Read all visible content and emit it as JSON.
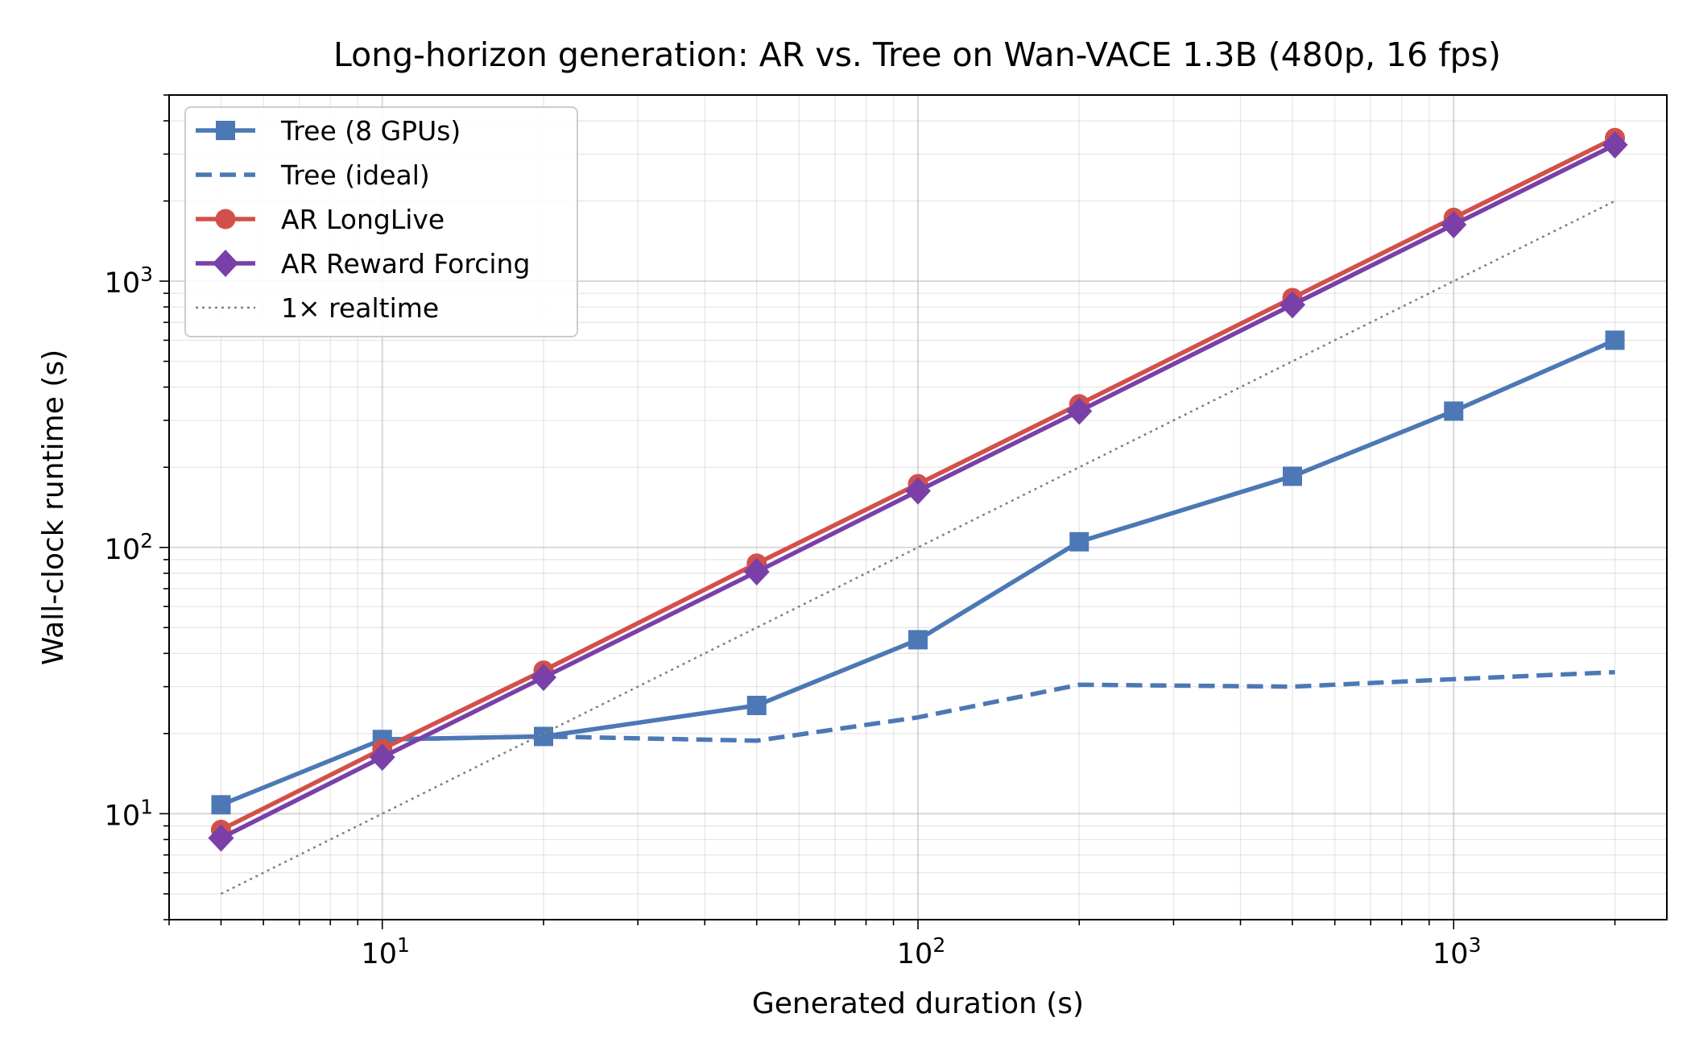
{
  "chart_data": {
    "type": "line",
    "title": "Long-horizon generation: AR vs. Tree on Wan-VACE 1.3B (480p, 16 fps)",
    "xlabel": "Generated duration (s)",
    "ylabel": "Wall-clock runtime (s)",
    "xscale": "log",
    "yscale": "log",
    "xlim": [
      4,
      2500
    ],
    "ylim": [
      4,
      5000
    ],
    "grid": true,
    "legend_position": "upper-left",
    "x_ticks": [
      {
        "value": 10,
        "base": "10",
        "exp": "1"
      },
      {
        "value": 100,
        "base": "10",
        "exp": "2"
      },
      {
        "value": 1000,
        "base": "10",
        "exp": "3"
      }
    ],
    "y_ticks": [
      {
        "value": 10,
        "base": "10",
        "exp": "1"
      },
      {
        "value": 100,
        "base": "10",
        "exp": "2"
      },
      {
        "value": 1000,
        "base": "10",
        "exp": "3"
      }
    ],
    "series": [
      {
        "name": "Tree (8 GPUs)",
        "color": "#4c78b5",
        "style": "solid",
        "marker": "square",
        "x": [
          5,
          10,
          20,
          50,
          100,
          200,
          500,
          1000,
          2000
        ],
        "y": [
          10.8,
          19,
          19.5,
          25.5,
          45,
          105,
          185,
          325,
          600
        ]
      },
      {
        "name": "Tree (ideal)",
        "color": "#4c78b5",
        "style": "dashed",
        "marker": "none",
        "x": [
          10,
          20,
          50,
          100,
          200,
          500,
          1000,
          2000
        ],
        "y": [
          19,
          19.5,
          18.8,
          23,
          30.5,
          30,
          32,
          34
        ]
      },
      {
        "name": "AR LongLive",
        "color": "#d1514a",
        "style": "solid",
        "marker": "circle",
        "x": [
          5,
          10,
          20,
          50,
          100,
          200,
          500,
          1000,
          2000
        ],
        "y": [
          8.7,
          17.5,
          34.5,
          87,
          173,
          345,
          865,
          1730,
          3450
        ]
      },
      {
        "name": "AR Reward Forcing",
        "color": "#7a40a8",
        "style": "solid",
        "marker": "diamond",
        "x": [
          5,
          10,
          20,
          50,
          100,
          200,
          500,
          1000,
          2000
        ],
        "y": [
          8.1,
          16.3,
          32.5,
          81,
          163,
          325,
          815,
          1630,
          3250
        ]
      },
      {
        "name": "1× realtime",
        "color": "#808080",
        "style": "dotted",
        "marker": "none",
        "x": [
          5,
          2000
        ],
        "y": [
          5,
          2000
        ]
      }
    ]
  }
}
